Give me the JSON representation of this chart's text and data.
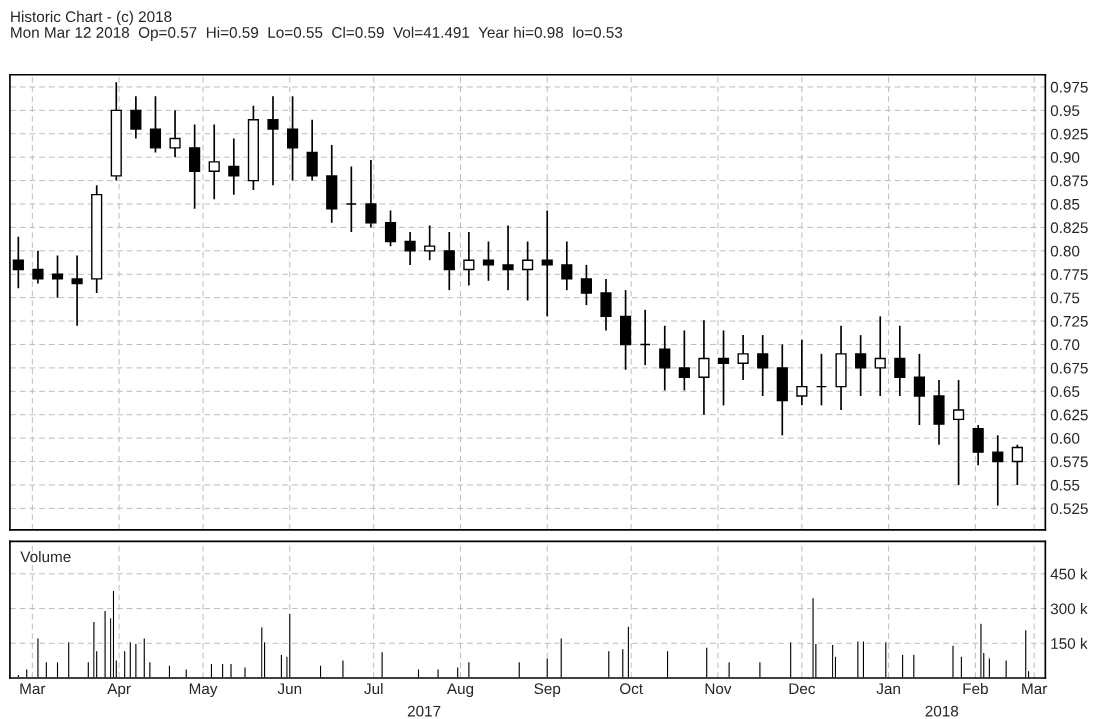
{
  "chart_data": [
    {
      "type": "candlestick",
      "title": "Historic Chart - (c) 2018",
      "subtitle": "Mon Mar 12 2018  Op=0.57  Hi=0.59  Lo=0.55  Cl=0.59  Vol=41.491  Year hi=0.98  lo=0.53",
      "color": "#000000",
      "x": [
        "2017-03-10",
        "2017-03-17",
        "2017-03-24",
        "2017-03-31",
        "2017-04-07",
        "2017-04-14",
        "2017-04-21",
        "2017-04-28",
        "2017-05-05",
        "2017-05-12",
        "2017-05-19",
        "2017-05-26",
        "2017-06-02",
        "2017-06-09",
        "2017-06-16",
        "2017-06-23",
        "2017-06-30",
        "2017-07-07",
        "2017-07-14",
        "2017-07-21",
        "2017-07-28",
        "2017-08-04",
        "2017-08-11",
        "2017-08-18",
        "2017-08-25",
        "2017-09-01",
        "2017-09-08",
        "2017-09-15",
        "2017-09-22",
        "2017-09-29",
        "2017-10-06",
        "2017-10-13",
        "2017-10-20",
        "2017-10-27",
        "2017-11-03",
        "2017-11-10",
        "2017-11-17",
        "2017-11-24",
        "2017-12-01",
        "2017-12-08",
        "2017-12-15",
        "2017-12-22",
        "2017-12-29",
        "2018-01-05",
        "2018-01-12",
        "2018-01-19",
        "2018-01-26",
        "2018-02-02",
        "2018-02-09",
        "2018-02-16",
        "2018-02-23",
        "2018-03-02"
      ],
      "ohlc": [
        [
          0.79,
          0.815,
          0.76,
          0.78
        ],
        [
          0.78,
          0.8,
          0.765,
          0.77
        ],
        [
          0.775,
          0.795,
          0.75,
          0.77
        ],
        [
          0.77,
          0.795,
          0.72,
          0.765
        ],
        [
          0.77,
          0.87,
          0.755,
          0.86
        ],
        [
          0.88,
          0.98,
          0.875,
          0.95
        ],
        [
          0.95,
          0.965,
          0.92,
          0.93
        ],
        [
          0.93,
          0.965,
          0.905,
          0.91
        ],
        [
          0.91,
          0.95,
          0.9,
          0.92
        ],
        [
          0.91,
          0.935,
          0.845,
          0.885
        ],
        [
          0.885,
          0.935,
          0.855,
          0.895
        ],
        [
          0.89,
          0.92,
          0.86,
          0.88
        ],
        [
          0.875,
          0.955,
          0.865,
          0.94
        ],
        [
          0.94,
          0.965,
          0.87,
          0.93
        ],
        [
          0.93,
          0.965,
          0.875,
          0.91
        ],
        [
          0.905,
          0.94,
          0.875,
          0.88
        ],
        [
          0.88,
          0.913,
          0.83,
          0.845
        ],
        [
          0.85,
          0.89,
          0.82,
          0.85
        ],
        [
          0.85,
          0.897,
          0.825,
          0.83
        ],
        [
          0.83,
          0.843,
          0.805,
          0.81
        ],
        [
          0.81,
          0.82,
          0.785,
          0.8
        ],
        [
          0.8,
          0.827,
          0.79,
          0.805
        ],
        [
          0.8,
          0.82,
          0.758,
          0.78
        ],
        [
          0.78,
          0.82,
          0.763,
          0.79
        ],
        [
          0.79,
          0.81,
          0.768,
          0.785
        ],
        [
          0.785,
          0.827,
          0.758,
          0.78
        ],
        [
          0.78,
          0.81,
          0.747,
          0.79
        ],
        [
          0.79,
          0.843,
          0.73,
          0.785
        ],
        [
          0.785,
          0.81,
          0.758,
          0.77
        ],
        [
          0.77,
          0.785,
          0.742,
          0.755
        ],
        [
          0.755,
          0.77,
          0.715,
          0.73
        ],
        [
          0.73,
          0.758,
          0.673,
          0.7
        ],
        [
          0.7,
          0.737,
          0.678,
          0.7
        ],
        [
          0.695,
          0.72,
          0.651,
          0.675
        ],
        [
          0.675,
          0.715,
          0.651,
          0.665
        ],
        [
          0.665,
          0.726,
          0.625,
          0.685
        ],
        [
          0.685,
          0.715,
          0.635,
          0.68
        ],
        [
          0.68,
          0.71,
          0.662,
          0.69
        ],
        [
          0.69,
          0.71,
          0.645,
          0.675
        ],
        [
          0.675,
          0.7,
          0.603,
          0.64
        ],
        [
          0.645,
          0.705,
          0.635,
          0.655
        ],
        [
          0.655,
          0.69,
          0.635,
          0.655
        ],
        [
          0.655,
          0.72,
          0.63,
          0.69
        ],
        [
          0.69,
          0.71,
          0.645,
          0.675
        ],
        [
          0.675,
          0.73,
          0.645,
          0.685
        ],
        [
          0.685,
          0.72,
          0.645,
          0.665
        ],
        [
          0.665,
          0.69,
          0.614,
          0.645
        ],
        [
          0.645,
          0.662,
          0.593,
          0.615
        ],
        [
          0.62,
          0.662,
          0.55,
          0.63
        ],
        [
          0.61,
          0.614,
          0.571,
          0.585
        ],
        [
          0.585,
          0.603,
          0.528,
          0.575
        ],
        [
          0.575,
          0.593,
          0.55,
          0.59
        ]
      ],
      "xlim": [
        "2017-03-07",
        "2018-03-12"
      ],
      "xticks": [
        {
          "value": "2017-03-15",
          "label": null
        },
        {
          "value": "2017-04-15",
          "label": null
        },
        {
          "value": "2017-05-15",
          "label": null
        },
        {
          "value": "2017-06-15",
          "label": null
        },
        {
          "value": "2017-07-15",
          "label": null
        },
        {
          "value": "2017-08-15",
          "label": null
        },
        {
          "value": "2017-09-15",
          "label": null
        },
        {
          "value": "2017-10-15",
          "label": null
        },
        {
          "value": "2017-11-15",
          "label": null
        },
        {
          "value": "2017-12-15",
          "label": null
        },
        {
          "value": "2018-01-15",
          "label": null
        },
        {
          "value": "2018-02-15",
          "label": null
        },
        {
          "value": "2018-03-08",
          "label": null
        }
      ],
      "ylim": [
        0.502,
        0.988
      ],
      "yticks": [
        0.975,
        0.95,
        0.925,
        {
          "value": 0.9,
          "label": "0.90"
        },
        0.875,
        0.85,
        0.825,
        {
          "value": 0.8,
          "label": "0.80"
        },
        0.775,
        0.75,
        0.725,
        {
          "value": 0.7,
          "label": "0.70"
        },
        0.675,
        0.65,
        0.625,
        {
          "value": 0.6,
          "label": "0.60"
        },
        0.575,
        0.55,
        0.525
      ],
      "tick_labels": "y",
      "grid": true
    },
    {
      "type": "bar",
      "title": "Volume",
      "color": "#000000",
      "x": [
        "2017-03-10",
        "2017-03-13",
        "2017-03-17",
        "2017-03-20",
        "2017-03-24",
        "2017-03-28",
        "2017-04-04",
        "2017-04-06",
        "2017-04-07",
        "2017-04-10",
        "2017-04-12",
        "2017-04-13",
        "2017-04-14",
        "2017-04-17",
        "2017-04-19",
        "2017-04-21",
        "2017-04-24",
        "2017-04-26",
        "2017-05-03",
        "2017-05-09",
        "2017-05-18",
        "2017-05-22",
        "2017-05-25",
        "2017-05-30",
        "2017-06-05",
        "2017-06-06",
        "2017-06-12",
        "2017-06-14",
        "2017-06-15",
        "2017-06-26",
        "2017-07-04",
        "2017-07-18",
        "2017-07-31",
        "2017-08-07",
        "2017-08-14",
        "2017-08-18",
        "2017-09-05",
        "2017-09-15",
        "2017-09-20",
        "2017-10-07",
        "2017-10-12",
        "2017-10-14",
        "2017-10-28",
        "2017-11-11",
        "2017-11-19",
        "2017-11-30",
        "2017-12-11",
        "2017-12-19",
        "2017-12-20",
        "2017-12-26",
        "2017-12-27",
        "2018-01-04",
        "2018-01-06",
        "2018-01-14",
        "2018-01-20",
        "2018-01-24",
        "2018-02-07",
        "2018-02-10",
        "2018-02-17",
        "2018-02-18",
        "2018-02-20",
        "2018-02-26",
        "2018-03-05",
        "2018-03-06"
      ],
      "values": [
        16,
        40,
        174,
        71,
        71,
        158,
        71,
        245,
        119,
        292,
        261,
        379,
        79,
        119,
        158,
        150,
        174,
        71,
        56,
        40,
        64,
        64,
        64,
        48,
        221,
        158,
        103,
        95,
        281,
        56,
        79,
        114,
        40,
        40,
        48,
        71,
        71,
        87,
        174,
        119,
        127,
        224,
        119,
        134,
        71,
        71,
        158,
        347,
        150,
        146,
        95,
        161,
        161,
        158,
        103,
        103,
        142,
        95,
        237,
        111,
        87,
        79,
        209,
        32
      ],
      "xlim": [
        "2017-03-07",
        "2018-03-12"
      ],
      "xticks": [
        {
          "value": "2017-03-15",
          "label": "Mar"
        },
        {
          "value": "2017-04-15",
          "label": "Apr"
        },
        {
          "value": "2017-05-15",
          "label": "May"
        },
        {
          "value": "2017-06-15",
          "label": "Jun"
        },
        {
          "value": "2017-07-15",
          "label": "Jul"
        },
        {
          "value": "2017-08-15",
          "label": "Aug"
        },
        {
          "value": "2017-09-15",
          "label": "Sep"
        },
        {
          "value": "2017-10-15",
          "label": "Oct"
        },
        {
          "value": "2017-11-15",
          "label": "Nov"
        },
        {
          "value": "2017-12-15",
          "label": "Dec"
        },
        {
          "value": "2018-01-15",
          "label": "Jan"
        },
        {
          "value": "2018-02-15",
          "label": "Feb"
        },
        {
          "value": "2018-03-08",
          "label": "Mar"
        }
      ],
      "ylim": [
        0,
        590
      ],
      "yticks": [
        {
          "value": 150,
          "label": "150 k"
        },
        {
          "value": 300,
          "label": "300 k"
        },
        {
          "value": 450,
          "label": "450 k"
        }
      ],
      "annotations": [
        "2017",
        "2018"
      ],
      "grid": true
    }
  ]
}
